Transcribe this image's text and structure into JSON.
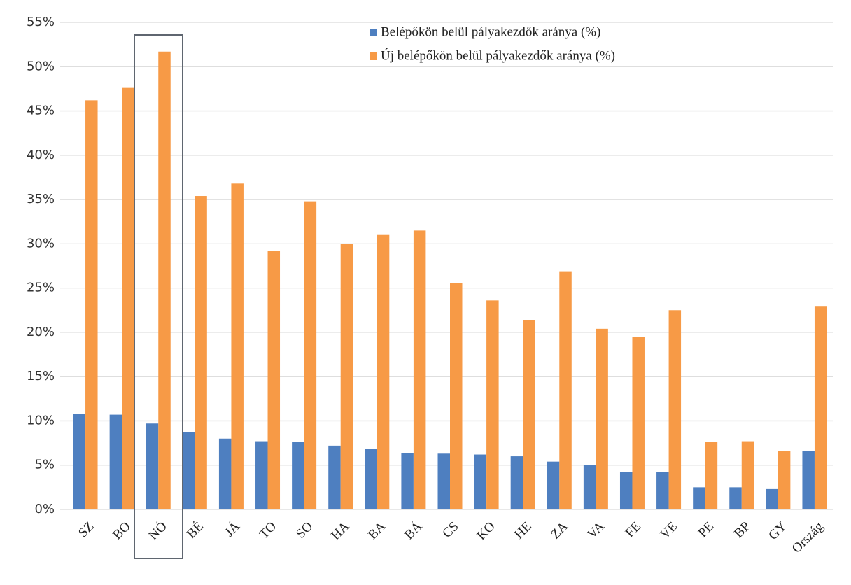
{
  "chart_data": {
    "type": "bar",
    "categories": [
      "SZ",
      "BO",
      "NÓ",
      "BÉ",
      "JÁ",
      "TO",
      "SO",
      "HA",
      "BA",
      "BÁ",
      "CS",
      "KO",
      "HE",
      "ZA",
      "VA",
      "FE",
      "VE",
      "PE",
      "BP",
      "GY",
      "Ország"
    ],
    "series": [
      {
        "name": "Belépőkön belül pályakezdők aránya (%)",
        "color": "#4e7fc0",
        "values": [
          10.8,
          10.7,
          9.7,
          8.7,
          8.0,
          7.7,
          7.6,
          7.2,
          6.8,
          6.4,
          6.3,
          6.2,
          6.0,
          5.4,
          5.0,
          4.2,
          4.2,
          2.5,
          2.5,
          2.3,
          6.6
        ]
      },
      {
        "name": "Új belépőkön belül pályakezdők aránya (%)",
        "color": "#f79a46",
        "values": [
          46.2,
          47.6,
          51.7,
          35.4,
          36.8,
          29.2,
          34.8,
          30.0,
          31.0,
          31.5,
          25.6,
          23.6,
          21.4,
          26.9,
          20.4,
          19.5,
          22.5,
          7.6,
          7.7,
          6.6,
          22.9
        ]
      }
    ],
    "ylim": [
      0,
      55
    ],
    "yticks": [
      {
        "value": 0,
        "label": "0%"
      },
      {
        "value": 5,
        "label": "5%"
      },
      {
        "value": 10,
        "label": "10%"
      },
      {
        "value": 15,
        "label": "15%"
      },
      {
        "value": 20,
        "label": "20%"
      },
      {
        "value": 25,
        "label": "25%"
      },
      {
        "value": 30,
        "label": "30%"
      },
      {
        "value": 35,
        "label": "35%"
      },
      {
        "value": 40,
        "label": "40%"
      },
      {
        "value": 45,
        "label": "45%"
      },
      {
        "value": 50,
        "label": "50%"
      },
      {
        "value": 55,
        "label": "55%"
      }
    ],
    "grid": true,
    "legend": "top-right"
  }
}
